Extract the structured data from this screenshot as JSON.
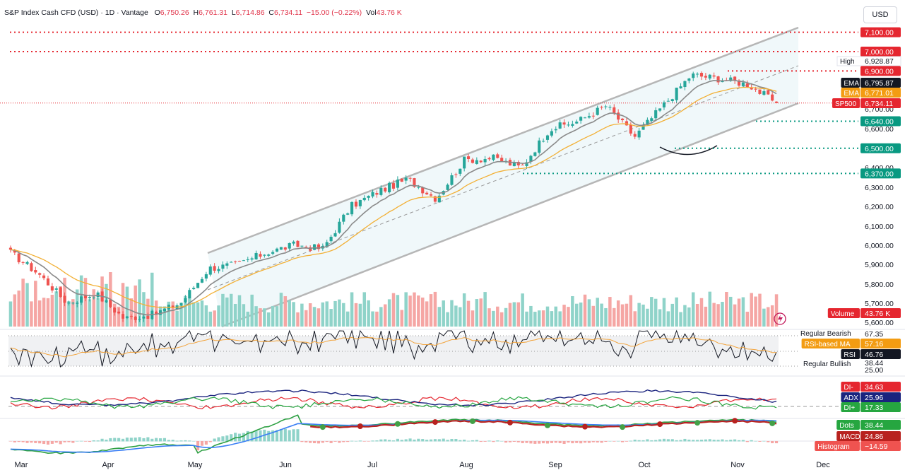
{
  "header": {
    "symbol": "S&P Index Cash CFD (USD) · 1D · Vantage",
    "open_label": "O",
    "open": "6,750.26",
    "high_label": "H",
    "high": "6,761.31",
    "low_label": "L",
    "low": "6,714.86",
    "close_label": "C",
    "close": "6,734.11",
    "change": "−15.00 (−0.22%)",
    "vol_label": "Vol",
    "vol": "43.76 K"
  },
  "currency_button": "USD",
  "colors": {
    "up": "#26a69a",
    "down": "#ef5350",
    "ema_fast": "#555555",
    "ema_slow": "#f2b035",
    "resistance": "#e5262f",
    "support": "#089981",
    "channel": "#b6b6b6"
  },
  "x_axis": {
    "labels": [
      "Mar",
      "Apr",
      "May",
      "Jun",
      "Jul",
      "Aug",
      "Sep",
      "Oct",
      "Nov",
      "Dec"
    ]
  },
  "price_axis": {
    "ticks": [
      "6,700.00",
      "6,600.00",
      "6,400.00",
      "6,300.00",
      "6,200.00",
      "6,100.00",
      "6,000.00",
      "5,900.00",
      "5,800.00",
      "5,700.00",
      "5,600.00"
    ]
  },
  "price_tags": {
    "r7100": "7,100.00",
    "r7000": "7,000.00",
    "high_label": "High",
    "high_value": "6,928.87",
    "r6900": "6,900.00",
    "ema_label": "EMA",
    "ema1_value": "6,795.87",
    "ema2_value": "6,771.01",
    "sp500_label": "SP500",
    "sp500_value": "6,734.11",
    "s6640": "6,640.00",
    "s6500": "6,500.00",
    "s6370": "6,370.00",
    "volume_label": "Volume",
    "volume_value": "43.76 K"
  },
  "rsi_panel": {
    "regular_bearish": "Regular Bearish",
    "level_upper": "67.35",
    "ma_label": "RSI-based MA",
    "ma_value": "57.16",
    "rsi_label": "RSI",
    "rsi_value": "46.76",
    "level_lower": "38.44",
    "regular_bullish": "Regular Bullish",
    "level_bottom": "25.00"
  },
  "dmi_panel": {
    "di_minus_label": "DI-",
    "di_minus_value": "34.63",
    "adx_label": "ADX",
    "adx_value": "25.96",
    "di_plus_label": "DI+",
    "di_plus_value": "17.33"
  },
  "macd_panel": {
    "dots_label": "Dots",
    "dots_value": "38.44",
    "macd_label": "MACD",
    "macd_value": "24.86",
    "hist_label": "Histogram",
    "hist_value": "−14.59"
  },
  "chart_data": {
    "type": "candlestick",
    "title": "S&P Index Cash CFD (USD) · 1D · Vantage",
    "x_range": [
      "Mar",
      "Nov"
    ],
    "y_range": [
      5600,
      7100
    ],
    "horizontal_levels": [
      7100,
      7000,
      6900,
      6640,
      6500,
      6370
    ],
    "last_close": 6734.11,
    "period_high": 6928.87,
    "ema_fast_last": 6795.87,
    "ema_slow_last": 6771.01,
    "close_path": [
      {
        "x": "Mar",
        "y": 5960
      },
      {
        "x": "Mar",
        "y": 5850
      },
      {
        "x": "Mar",
        "y": 5700
      },
      {
        "x": "Apr",
        "y": 5750
      },
      {
        "x": "Apr",
        "y": 5620
      },
      {
        "x": "Apr",
        "y": 5640
      },
      {
        "x": "May",
        "y": 5700
      },
      {
        "x": "May",
        "y": 5880
      },
      {
        "x": "May",
        "y": 5900
      },
      {
        "x": "Jun",
        "y": 5960
      },
      {
        "x": "Jun",
        "y": 6000
      },
      {
        "x": "Jun",
        "y": 5980
      },
      {
        "x": "Jul",
        "y": 6200
      },
      {
        "x": "Jul",
        "y": 6280
      },
      {
        "x": "Jul",
        "y": 6340
      },
      {
        "x": "Aug",
        "y": 6240
      },
      {
        "x": "Aug",
        "y": 6440
      },
      {
        "x": "Aug",
        "y": 6450
      },
      {
        "x": "Sep",
        "y": 6400
      },
      {
        "x": "Sep",
        "y": 6600
      },
      {
        "x": "Sep",
        "y": 6640
      },
      {
        "x": "Oct",
        "y": 6720
      },
      {
        "x": "Oct",
        "y": 6560
      },
      {
        "x": "Oct",
        "y": 6720
      },
      {
        "x": "Oct",
        "y": 6880
      },
      {
        "x": "Nov",
        "y": 6860
      },
      {
        "x": "Nov",
        "y": 6830
      },
      {
        "x": "Nov",
        "y": 6734
      }
    ]
  }
}
